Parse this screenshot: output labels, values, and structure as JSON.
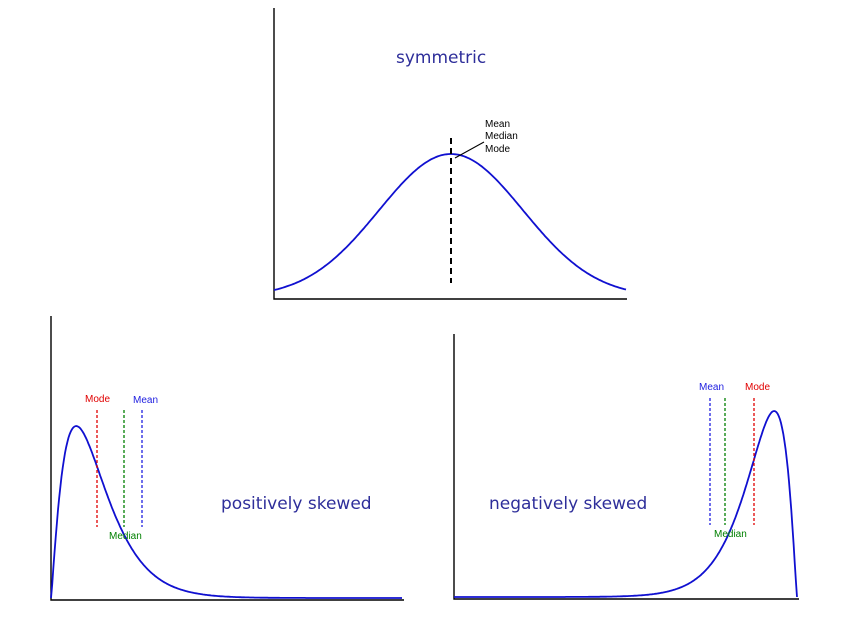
{
  "symmetric": {
    "title": "symmetric",
    "labels": [
      "Mean",
      "Median",
      "Mode"
    ]
  },
  "positive": {
    "title": "positively skewed",
    "mode_label": "Mode",
    "mean_label": "Mean",
    "median_label": "Median"
  },
  "negative": {
    "title": "negatively skewed",
    "mean_label": "Mean",
    "mode_label": "Mode",
    "median_label": "Median"
  },
  "colors": {
    "curve": "#1010d0",
    "mean": "#2020e0",
    "median": "#008000",
    "mode": "#e00000",
    "title": "#2e2e9a"
  }
}
